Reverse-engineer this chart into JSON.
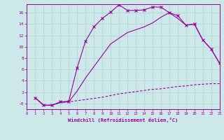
{
  "xlabel": "Windchill (Refroidissement éolien,°C)",
  "bg_color": "#cce8e8",
  "grid_color": "#b0d0d0",
  "line_color": "#990099",
  "xlim": [
    0,
    23
  ],
  "ylim": [
    -1.0,
    17.5
  ],
  "yticks": [
    0,
    2,
    4,
    6,
    8,
    10,
    12,
    14,
    16
  ],
  "ytick_labels": [
    "-0",
    "2",
    "4",
    "6",
    "8",
    "10",
    "12",
    "14",
    "16"
  ],
  "xticks": [
    0,
    1,
    2,
    3,
    4,
    5,
    6,
    7,
    8,
    9,
    10,
    11,
    12,
    13,
    14,
    15,
    16,
    17,
    18,
    19,
    20,
    21,
    22,
    23
  ],
  "s1_x": [
    1,
    2,
    3,
    4,
    5,
    6,
    7,
    8,
    9,
    10,
    11,
    12,
    13,
    14,
    15,
    16,
    17,
    18,
    19,
    20,
    21,
    22,
    23
  ],
  "s1_y": [
    1.0,
    -0.3,
    -0.3,
    0.3,
    0.4,
    6.3,
    11.0,
    13.5,
    15.0,
    16.1,
    17.4,
    16.4,
    16.4,
    16.5,
    17.0,
    17.0,
    16.0,
    15.5,
    13.8,
    14.0,
    11.2,
    9.6,
    7.1
  ],
  "s2_x": [
    1,
    2,
    3,
    4,
    5,
    6,
    7,
    8,
    9,
    10,
    11,
    12,
    13,
    14,
    15,
    16,
    17,
    18,
    19,
    20,
    21,
    22,
    23
  ],
  "s2_y": [
    1.0,
    -0.3,
    -0.3,
    0.2,
    0.3,
    2.2,
    4.5,
    6.5,
    8.5,
    10.5,
    11.5,
    12.5,
    13.0,
    13.5,
    14.2,
    15.2,
    16.0,
    15.0,
    13.8,
    14.0,
    11.2,
    9.6,
    7.1
  ],
  "s3_x": [
    1,
    2,
    3,
    4,
    5,
    6,
    7,
    8,
    9,
    10,
    11,
    12,
    13,
    14,
    15,
    16,
    17,
    18,
    19,
    20,
    21,
    22,
    23
  ],
  "s3_y": [
    1.0,
    -0.3,
    -0.3,
    0.2,
    0.3,
    0.5,
    0.7,
    0.9,
    1.1,
    1.4,
    1.7,
    1.9,
    2.1,
    2.3,
    2.5,
    2.6,
    2.8,
    3.0,
    3.1,
    3.3,
    3.4,
    3.5,
    3.5
  ]
}
